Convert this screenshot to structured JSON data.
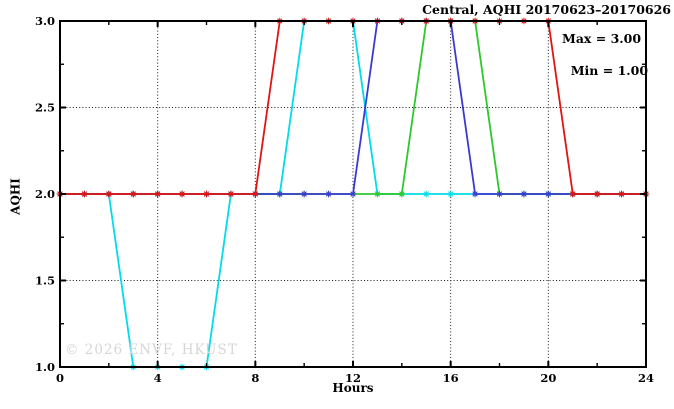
{
  "title": "Central, AQHI 20170623–20170626",
  "annotations": {
    "max_label": "Max = 3.00",
    "min_label": "Min = 1.00"
  },
  "watermark": "© 2026 ENVF, HKUST",
  "axes": {
    "xlabel": "Hours",
    "ylabel": "AQHI"
  },
  "colors": {
    "background": "#ffffff",
    "axis": "#000000",
    "grid": "#1a1a1a",
    "watermark": "#d6d6d6",
    "series_red": "#e01410",
    "series_cyan": "#00dde6",
    "series_blue": "#3a3ad1",
    "series_green": "#2ec82e"
  },
  "chart_data": {
    "type": "line",
    "title": "Central, AQHI 20170623–20170626",
    "xlabel": "Hours",
    "ylabel": "AQHI",
    "xlim": [
      0,
      24
    ],
    "ylim": [
      1.0,
      3.0
    ],
    "grid": true,
    "legend_position": "none",
    "stats": {
      "max": 3.0,
      "min": 1.0
    },
    "x_major_ticks": [
      0,
      4,
      8,
      12,
      16,
      20,
      24
    ],
    "x_minor_ticks": [
      2,
      6,
      10,
      14,
      18,
      22
    ],
    "x_tick_labels": [
      "0",
      "4",
      "8",
      "12",
      "16",
      "20",
      "24"
    ],
    "y_major_ticks": [
      1.0,
      1.5,
      2.0,
      2.5,
      3.0
    ],
    "y_minor_ticks": [
      1.25,
      1.75,
      2.25,
      2.75
    ],
    "y_tick_labels": [
      "1.0",
      "1.5",
      "2.0",
      "2.5",
      "3.0"
    ],
    "grid_x": [
      4,
      8,
      12,
      16,
      20
    ],
    "grid_y": [
      1.5,
      2.0,
      2.5
    ],
    "x": [
      0,
      1,
      2,
      3,
      4,
      5,
      6,
      7,
      8,
      9,
      10,
      11,
      12,
      13,
      14,
      15,
      16,
      17,
      18,
      19,
      20,
      21,
      22,
      23,
      24
    ],
    "series": [
      {
        "name": "series-cyan",
        "color": "#00dde6",
        "values": [
          2,
          2,
          2,
          1,
          1,
          1,
          1,
          2,
          2,
          2,
          3,
          3,
          3,
          2,
          2,
          2,
          2,
          2,
          2,
          2,
          2,
          2,
          2,
          2,
          2
        ]
      },
      {
        "name": "series-green",
        "color": "#2ec82e",
        "values": [
          2,
          2,
          2,
          2,
          2,
          2,
          2,
          2,
          2,
          2,
          2,
          2,
          2,
          2,
          2,
          3,
          3,
          3,
          2,
          2,
          2,
          2,
          2,
          2,
          2
        ]
      },
      {
        "name": "series-blue",
        "color": "#3a3ad1",
        "values": [
          2,
          2,
          2,
          2,
          2,
          2,
          2,
          2,
          2,
          2,
          2,
          2,
          2,
          3,
          3,
          3,
          3,
          2,
          2,
          2,
          2,
          2,
          2,
          2,
          2
        ]
      },
      {
        "name": "series-red",
        "color": "#e01410",
        "values": [
          2,
          2,
          2,
          2,
          2,
          2,
          2,
          2,
          2,
          3,
          3,
          3,
          3,
          3,
          3,
          3,
          3,
          3,
          3,
          3,
          3,
          2,
          2,
          2,
          2
        ]
      }
    ]
  }
}
